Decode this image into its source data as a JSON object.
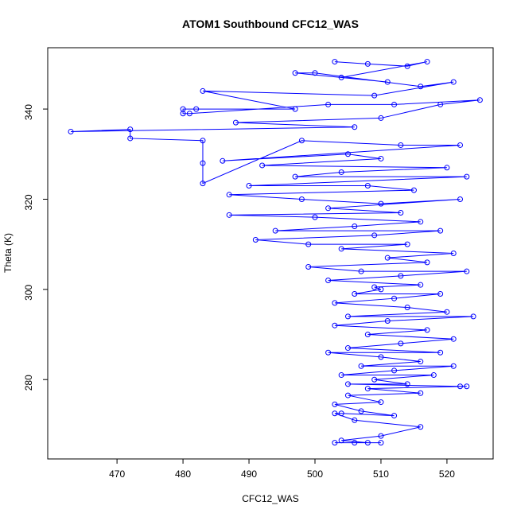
{
  "chart_data": {
    "type": "line",
    "title": "ATOM1 Southbound CFC12_WAS",
    "xlabel": "CFC12_WAS",
    "ylabel": "Theta (K)",
    "color": "#0000ff",
    "markers": true,
    "x": [
      503,
      508,
      514,
      517,
      504,
      511,
      497,
      500,
      516,
      521,
      509,
      483,
      497,
      482,
      480,
      480,
      481,
      502,
      512,
      525,
      519,
      510,
      488,
      506,
      463,
      472,
      472,
      483,
      483,
      483,
      498,
      513,
      522,
      486,
      505,
      510,
      492,
      520,
      504,
      497,
      523,
      490,
      508,
      515,
      487,
      498,
      510,
      522,
      502,
      513,
      487,
      500,
      516,
      506,
      494,
      519,
      509,
      491,
      499,
      514,
      504,
      521,
      511,
      517,
      499,
      507,
      523,
      513,
      502,
      516,
      509,
      510,
      506,
      519,
      512,
      503,
      514,
      520,
      505,
      524,
      511,
      503,
      517,
      508,
      521,
      513,
      505,
      519,
      502,
      510,
      516,
      507,
      521,
      512,
      504,
      518,
      509,
      514,
      505,
      522,
      523,
      508,
      516,
      505,
      510,
      503,
      507,
      512,
      504,
      503,
      506,
      516,
      510,
      504,
      508,
      510,
      506,
      503
    ],
    "y": [
      350.5,
      350,
      349.5,
      350.5,
      347,
      346,
      348,
      348,
      345,
      346,
      343,
      344,
      340,
      340,
      340,
      339,
      339,
      341,
      341,
      342,
      341,
      338,
      337,
      336,
      335,
      335.5,
      333.5,
      333,
      328,
      323.5,
      333,
      332,
      332,
      328.5,
      330,
      329,
      327.5,
      327,
      326,
      325,
      325,
      323,
      323,
      322,
      321,
      320,
      319,
      320,
      318,
      317,
      316.5,
      316,
      315,
      314,
      313,
      313,
      312,
      311,
      310,
      310,
      309,
      308,
      307,
      306,
      305,
      304,
      304,
      303,
      302,
      301,
      300.5,
      300,
      299,
      299,
      298,
      297,
      296,
      295,
      294,
      294,
      293,
      292,
      291,
      290,
      289,
      288,
      287,
      286,
      286,
      285,
      284,
      283,
      283,
      282,
      281,
      281,
      280,
      279,
      279,
      278.5,
      278.5,
      278,
      277,
      276.5,
      275,
      274.5,
      273,
      272,
      272.5,
      272.5,
      271,
      269.5,
      267.5,
      266.5,
      266,
      266,
      266,
      266
    ],
    "xlim": [
      459.5,
      527
    ],
    "ylim": [
      262.4,
      353.6
    ],
    "xticks": [
      470,
      480,
      490,
      500,
      510,
      520
    ],
    "yticks": [
      280,
      300,
      320,
      340
    ]
  }
}
